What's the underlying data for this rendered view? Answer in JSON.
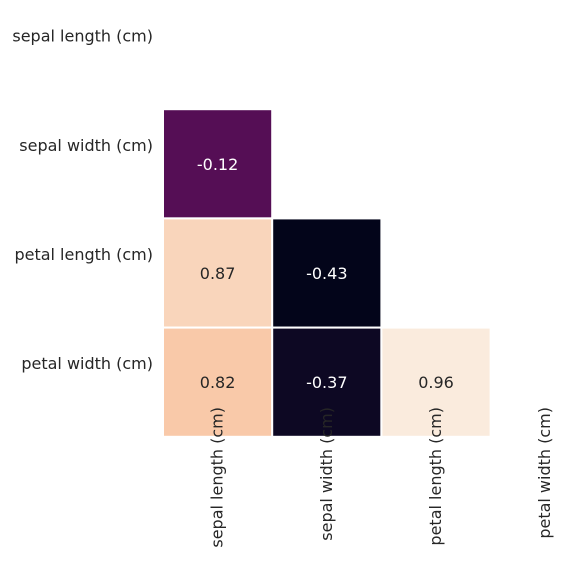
{
  "chart_data": {
    "type": "heatmap",
    "mask": "upper-triangle-including-diagonal",
    "x_categories": [
      "sepal length (cm)",
      "sepal width (cm)",
      "petal length (cm)",
      "petal width (cm)"
    ],
    "y_categories": [
      "sepal length (cm)",
      "sepal width (cm)",
      "petal length (cm)",
      "petal width (cm)"
    ],
    "values": [
      [
        null,
        null,
        null,
        null
      ],
      [
        -0.12,
        null,
        null,
        null
      ],
      [
        0.87,
        -0.43,
        null,
        null
      ],
      [
        0.82,
        -0.37,
        0.96,
        null
      ]
    ],
    "value_labels": [
      [
        null,
        null,
        null,
        null
      ],
      [
        "-0.12",
        null,
        null,
        null
      ],
      [
        "0.87",
        "-0.43",
        null,
        null
      ],
      [
        "0.82",
        "-0.37",
        "0.96",
        null
      ]
    ],
    "colormap": "rocket",
    "colorbar": false,
    "cell_border_color": "#ffffff",
    "dark_text_color": "#262626",
    "light_text_color": "#ffffff"
  }
}
